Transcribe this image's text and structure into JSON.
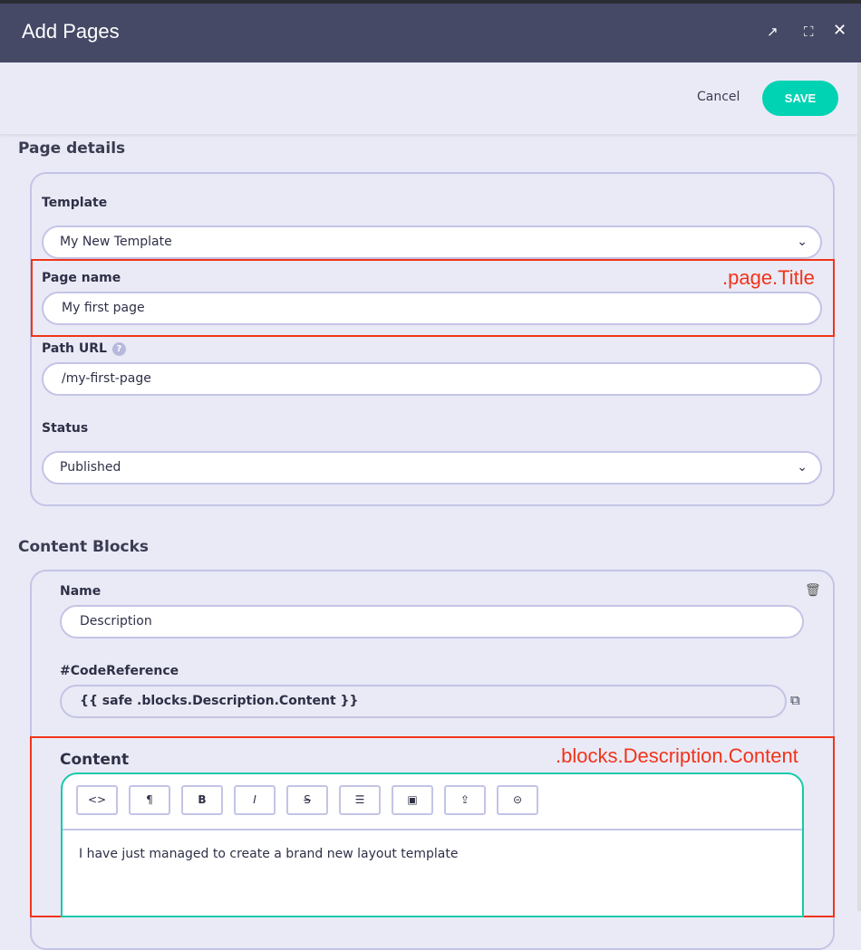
{
  "header": {
    "title": "Add Pages",
    "icons": [
      "external-link-icon",
      "fullscreen-icon",
      "close-icon"
    ]
  },
  "toolbar": {
    "cancel": "Cancel",
    "save": "SAVE"
  },
  "page_details": {
    "title": "Page details",
    "template_label": "Template",
    "template_value": "My New Template",
    "page_name_label": "Page name",
    "page_name_value": "My first page",
    "path_label": "Path URL",
    "path_value": "/my-first-page",
    "status_label": "Status",
    "status_value": "Published"
  },
  "annotations": {
    "page_title": ".page.Title",
    "blocks_content": ".blocks.Description.Content"
  },
  "content_blocks": {
    "title": "Content Blocks",
    "name_label": "Name",
    "name_value": "Description",
    "code_label": "#CodeReference",
    "code_value": "{{ safe .blocks.Description.Content }}",
    "content_label": "Content",
    "content_text": "I have just managed to create a brand new layout template",
    "editor_buttons": [
      "<>",
      "¶",
      "B",
      "I",
      "S",
      "☰",
      "▣",
      "⇪",
      "⊝"
    ]
  },
  "colors": {
    "header": "#454966",
    "accent": "#00d2b4",
    "annotation": "#f0341a"
  }
}
